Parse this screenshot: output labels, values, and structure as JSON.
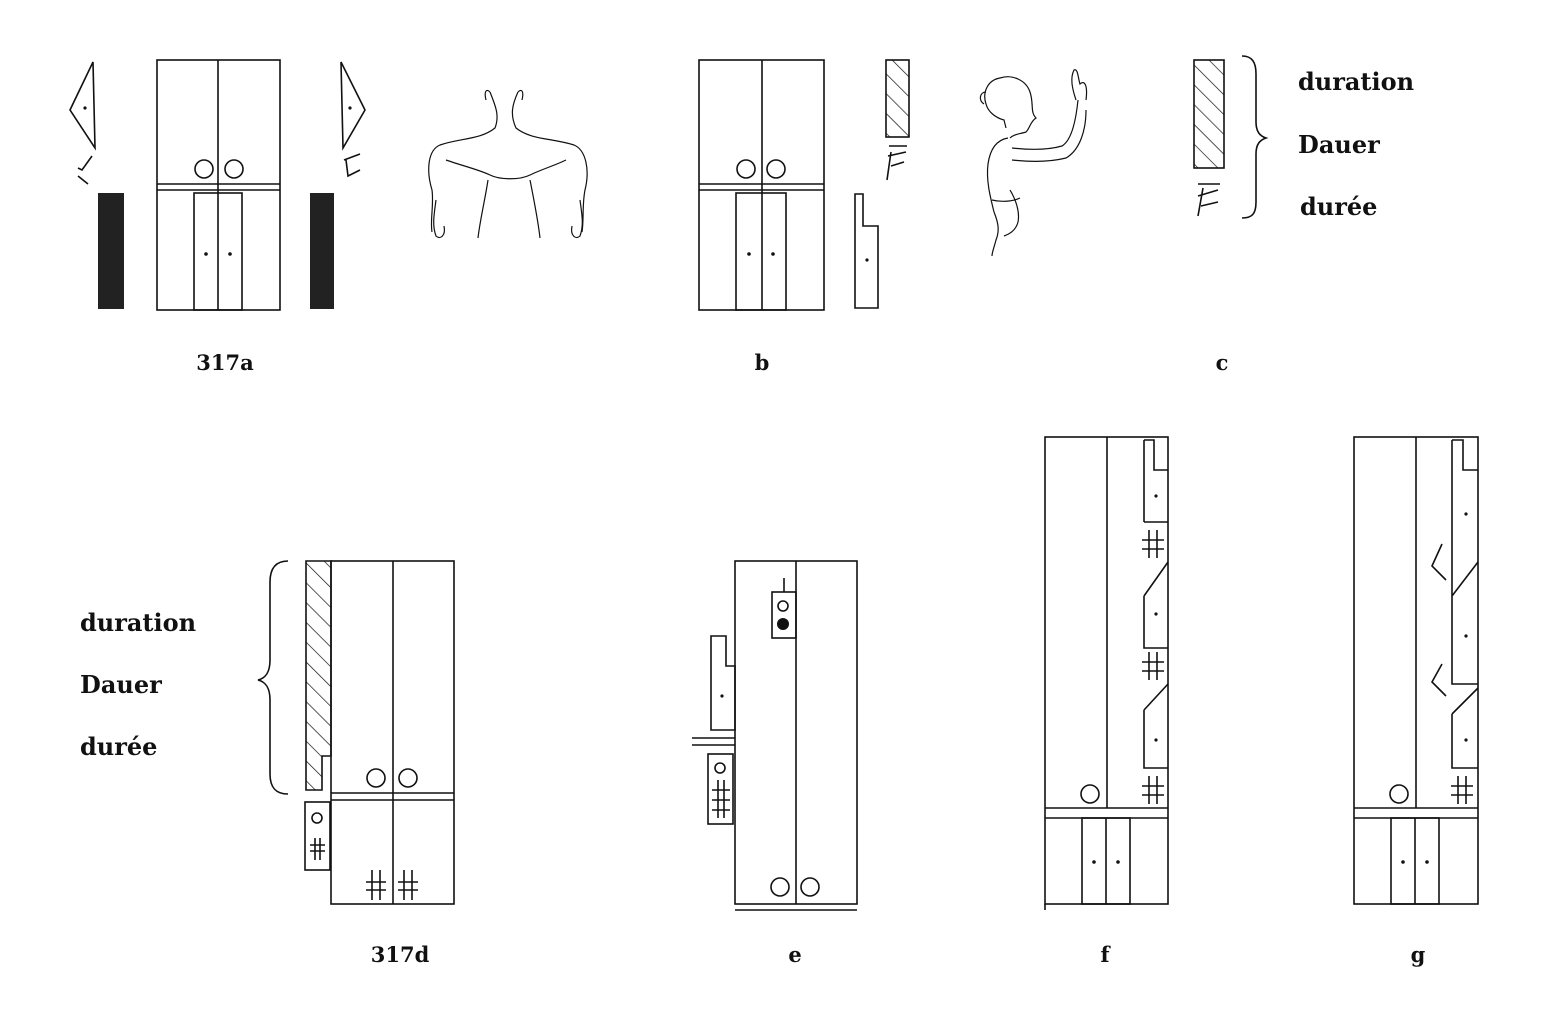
{
  "captions": {
    "fig_317a": "317a",
    "fig_b": "b",
    "fig_c": "c",
    "fig_317d": "317d",
    "fig_e": "e",
    "fig_f": "f",
    "fig_g": "g"
  },
  "legend_c": {
    "line1": "duration",
    "line2": "Dauer",
    "line3": "durée"
  },
  "legend_d": {
    "line1": "duration",
    "line2": "Dauer",
    "line3": "durée"
  }
}
